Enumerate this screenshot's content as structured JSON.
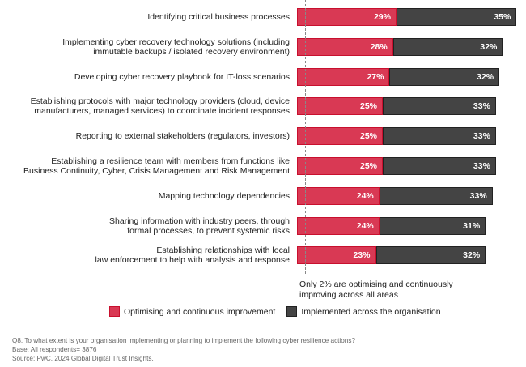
{
  "chart_data": {
    "type": "bar",
    "orientation": "horizontal",
    "stacked": true,
    "categories": [
      "Identifying critical business processes",
      "Implementing cyber recovery technology solutions (including immutable backups / isolated recovery environment)",
      "Developing cyber recovery playbook for IT-loss scenarios",
      "Establishing protocols with major technology providers (cloud, device manufacturers, managed services) to coordinate incident responses",
      "Reporting to external stakeholders (regulators, investors)",
      "Establishing a resilience team with members from functions like Business Continuity, Cyber, Crisis Management and Risk Management",
      "Mapping technology dependencies",
      "Sharing information with industry peers, through formal processes, to prevent systemic risks",
      "Establishing relationships with local law enforcement to help with analysis and response"
    ],
    "category_lines": [
      [
        "Identifying critical business processes"
      ],
      [
        "Implementing cyber recovery technology solutions (including",
        "immutable backups / isolated recovery environment)"
      ],
      [
        "Developing cyber recovery playbook for IT-loss scenarios"
      ],
      [
        "Establishing protocols with major technology providers (cloud, device",
        "manufacturers, managed services) to coordinate incident responses"
      ],
      [
        "Reporting to external stakeholders (regulators, investors)"
      ],
      [
        "Establishing a resilience team with members from functions like",
        "Business Continuity, Cyber, Crisis Management and Risk Management"
      ],
      [
        "Mapping technology dependencies"
      ],
      [
        "Sharing information with industry peers, through",
        "formal processes, to prevent systemic risks"
      ],
      [
        "Establishing relationships with local",
        "law enforcement to help with analysis and response"
      ]
    ],
    "series": [
      {
        "name": "Optimising and continuous improvement",
        "color": "#d93954",
        "values": [
          29,
          28,
          27,
          25,
          25,
          25,
          24,
          24,
          23
        ]
      },
      {
        "name": "Implemented across the organisation",
        "color": "#444444",
        "values": [
          35,
          32,
          32,
          33,
          33,
          33,
          33,
          31,
          32
        ]
      }
    ],
    "reference_line": {
      "value": 2,
      "annotation": "Only 2% are optimising and continuously improving across all areas"
    },
    "xlim": [
      0,
      64
    ],
    "legend": "bottom",
    "value_suffix": "%"
  },
  "footer": {
    "question": "Q8. To what extent is your organisation implementing or planning to implement the following cyber resilience actions?",
    "base": "Base: All respondents= 3876",
    "source": "Source: PwC, 2024 Global Digital Trust Insights."
  }
}
